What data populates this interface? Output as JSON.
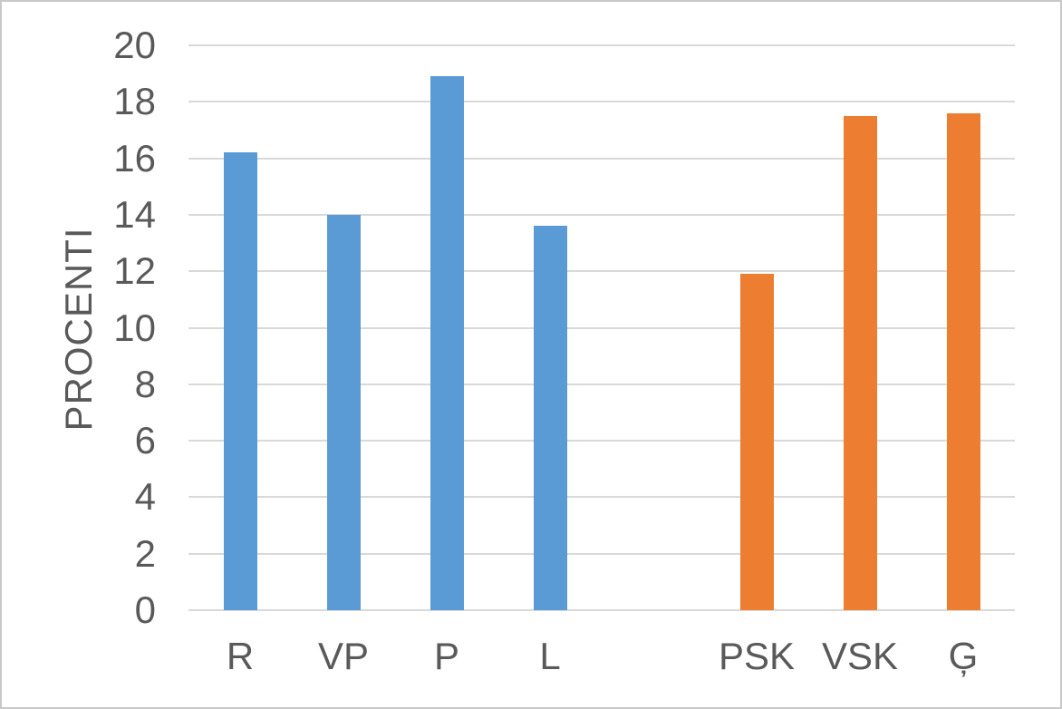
{
  "chart_data": {
    "type": "bar",
    "categories": [
      "R",
      "VP",
      "P",
      "L",
      "",
      "PSK",
      "VSK",
      "Ģ"
    ],
    "values": [
      16.2,
      14.0,
      18.9,
      13.6,
      null,
      11.9,
      17.5,
      17.6
    ],
    "bar_colors": [
      "#5B9BD5",
      "#5B9BD5",
      "#5B9BD5",
      "#5B9BD5",
      null,
      "#ED7D31",
      "#ED7D31",
      "#ED7D31"
    ],
    "series_hint": [
      {
        "name": "blue-group",
        "categories": [
          "R",
          "VP",
          "P",
          "L"
        ],
        "values": [
          16.2,
          14.0,
          18.9,
          13.6
        ],
        "color": "#5B9BD5"
      },
      {
        "name": "orange-group",
        "categories": [
          "PSK",
          "VSK",
          "Ģ"
        ],
        "values": [
          11.9,
          17.5,
          17.6
        ],
        "color": "#ED7D31"
      }
    ],
    "title": "",
    "xlabel": "",
    "ylabel": "PROCENTI",
    "ylim": [
      0,
      20
    ],
    "yticks": [
      0,
      2,
      4,
      6,
      8,
      10,
      12,
      14,
      16,
      18,
      20
    ],
    "grid": true,
    "legend": false
  },
  "colors": {
    "blue_series": "#5B9BD5",
    "orange_series": "#ED7D31",
    "gridline": "#D9D9D9",
    "axis_text": "#595959",
    "frame_border": "#C8C8C8",
    "background": "#FFFFFF"
  }
}
